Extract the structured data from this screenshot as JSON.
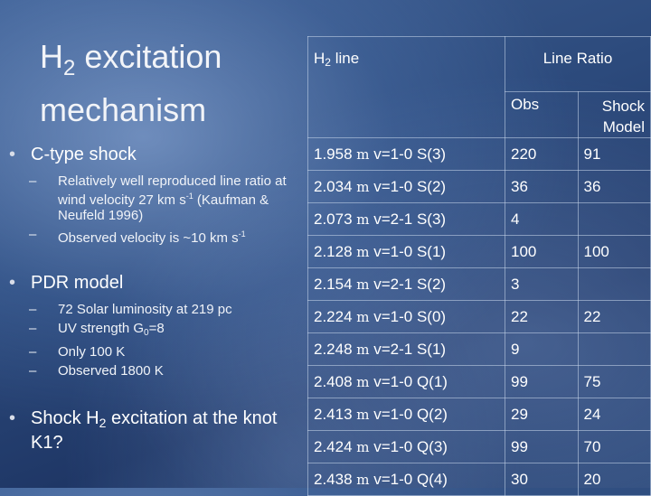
{
  "slide": {
    "title_part1": "H",
    "title_sub": "2",
    "title_part2": " excitation mechanism",
    "bullets": [
      {
        "label": "C-type shock",
        "subitems": [
          {
            "text1": "Relatively well reproduced line ratio at wind velocity 27 km s",
            "sup": "-1",
            "text2": " (Kaufman & Neufeld 1996)"
          },
          {
            "text1": "Observed velocity is ~10 km s",
            "sup": "-1",
            "text2": ""
          }
        ]
      },
      {
        "label": "PDR model",
        "subitems": [
          {
            "text1": "72 Solar luminosity at 219 pc"
          },
          {
            "text1": "UV strength G",
            "sub": "0",
            "text2": "=8"
          },
          {
            "text1": "Only 100 K"
          },
          {
            "text1": "Observed 1800 K"
          }
        ]
      },
      {
        "label_part1": "Shock H",
        "label_sub": "2",
        "label_part2": " excitation at the knot K1?"
      }
    ]
  },
  "table": {
    "col_line_header_main": "H",
    "col_line_header_sub": "2",
    "col_line_header_rest": " line",
    "col_ratio_header": "Line Ratio",
    "col_obs_header": "Obs",
    "col_model_header_1": "Shock",
    "col_model_header_2": "Model",
    "mu": "m",
    "rows": [
      {
        "wave": "1.958 ",
        "unit": "m",
        "trans": " v=1-0 S(3)",
        "obs": "220",
        "model": "91"
      },
      {
        "wave": "2.034 ",
        "unit": "m",
        "trans": " v=1-0 S(2)",
        "obs": "36",
        "model": "36"
      },
      {
        "wave": "2.073 ",
        "unit": "m",
        "trans": " v=2-1 S(3)",
        "obs": "4",
        "model": ""
      },
      {
        "wave": "2.128 ",
        "unit": "m",
        "trans": " v=1-0 S(1)",
        "obs": "100",
        "model": "100"
      },
      {
        "wave": "2.154 ",
        "unit": "m",
        "trans": " v=2-1 S(2)",
        "obs": "3",
        "model": ""
      },
      {
        "wave": "2.224 ",
        "unit": "m",
        "trans": " v=1-0 S(0)",
        "obs": "22",
        "model": "22"
      },
      {
        "wave": "2.248 ",
        "unit": "m",
        "trans": " v=2-1 S(1)",
        "obs": "9",
        "model": ""
      },
      {
        "wave": "2.408 ",
        "unit": "m",
        "trans": " v=1-0 Q(1)",
        "obs": "99",
        "model": "75"
      },
      {
        "wave": "2.413 ",
        "unit": "m",
        "trans": " v=1-0 Q(2)",
        "obs": "29",
        "model": "24"
      },
      {
        "wave": "2.424 ",
        "unit": "m",
        "trans": " v=1-0 Q(3)",
        "obs": "99",
        "model": "70"
      },
      {
        "wave": "2.438 ",
        "unit": "m",
        "trans": " v=1-0 Q(4)",
        "obs": "30",
        "model": "20"
      }
    ]
  }
}
